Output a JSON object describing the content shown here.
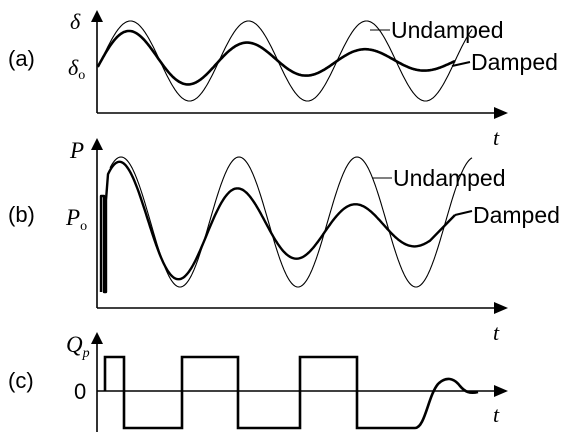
{
  "panel_a": {
    "label": "(a)",
    "y_symbol": "δ",
    "y_ref": "δ",
    "y_ref_sub": "o",
    "x_symbol": "t",
    "undamped_label": "Undamped",
    "damped_label": "Damped"
  },
  "panel_b": {
    "label": "(b)",
    "y_symbol": "P",
    "y_ref": "P",
    "y_ref_sub": "o",
    "x_symbol": "t",
    "undamped_label": "Undamped",
    "damped_label": "Damped"
  },
  "panel_c": {
    "label": "(c)",
    "y_symbol": "Q",
    "y_symbol_sub": "p",
    "zero_label": "0",
    "x_symbol": "t"
  },
  "colors": {
    "ink": "#000000",
    "background": "#ffffff"
  }
}
